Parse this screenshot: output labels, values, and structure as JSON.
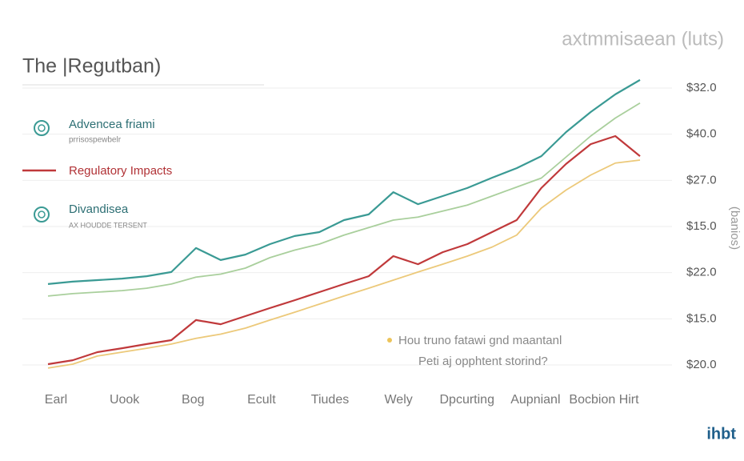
{
  "chart_data": {
    "type": "line",
    "title": "The |Regutban)",
    "subtitle": "axtmmisaean (luts)",
    "y_axis_title": "(banios)",
    "right_axis_labels": [
      "$32.0",
      "$40.0",
      "$27.0",
      "$15.0",
      "$22.0",
      "$15.0",
      "$20.0"
    ],
    "x_axis_labels": [
      "Earl",
      "Uook",
      "Bog",
      "Ecult",
      "Tiudes",
      "Wely",
      "Dpcurting",
      "Aupnianl",
      "Bocbion Hirt"
    ],
    "x": [
      0,
      1,
      2,
      3,
      4,
      5,
      6,
      7,
      8,
      9,
      10,
      11,
      12,
      13,
      14,
      15,
      16,
      17,
      18,
      19,
      20,
      21,
      22,
      23,
      24
    ],
    "xlim": [
      0,
      24
    ],
    "ylim": [
      0,
      100
    ],
    "grid": true,
    "series": [
      {
        "name": "Advencea friami",
        "sublabel": "prrisospewbelr",
        "color": "#3a9a94",
        "values": [
          30.7,
          31.5,
          32,
          32.5,
          33.3,
          34.7,
          42.7,
          38.7,
          40.5,
          44,
          46.7,
          48,
          52,
          53.9,
          61.3,
          57.3,
          60,
          62.7,
          66.1,
          69.3,
          73.3,
          81.3,
          88,
          93.9,
          98.7
        ]
      },
      {
        "color": "#a9cf9c",
        "values": [
          26.7,
          27.5,
          28,
          28.5,
          29.3,
          30.7,
          33,
          34,
          36,
          39.5,
          42,
          44,
          47,
          49.5,
          52,
          53,
          55,
          57,
          60,
          63,
          66,
          73,
          80,
          86,
          91
        ]
      },
      {
        "name": "Regulatory Impacts",
        "color": "#c0393b",
        "values": [
          4,
          5.3,
          8,
          9.3,
          10.7,
          12,
          18.7,
          17.3,
          20,
          22.7,
          25.3,
          28,
          30.7,
          33.3,
          40,
          37.3,
          41.3,
          44,
          48,
          52,
          62.7,
          70.7,
          77.3,
          80,
          73.3
        ]
      },
      {
        "color": "#ecc97a",
        "values": [
          2.7,
          4,
          6.7,
          8,
          9.3,
          10.7,
          12.6,
          14,
          16,
          18.7,
          21.3,
          24,
          26.7,
          29.3,
          32,
          34.7,
          37.3,
          40,
          43,
          47,
          56,
          62,
          67,
          71,
          72
        ]
      }
    ],
    "legend_extra": {
      "name": "Divandisea",
      "sublabel": "AX HOUDDE TERSENT"
    },
    "annotations": [
      "Hou truno fatawi gnd maantanl",
      "Peti aj opphtent storind?"
    ],
    "logo": "ihbt"
  }
}
